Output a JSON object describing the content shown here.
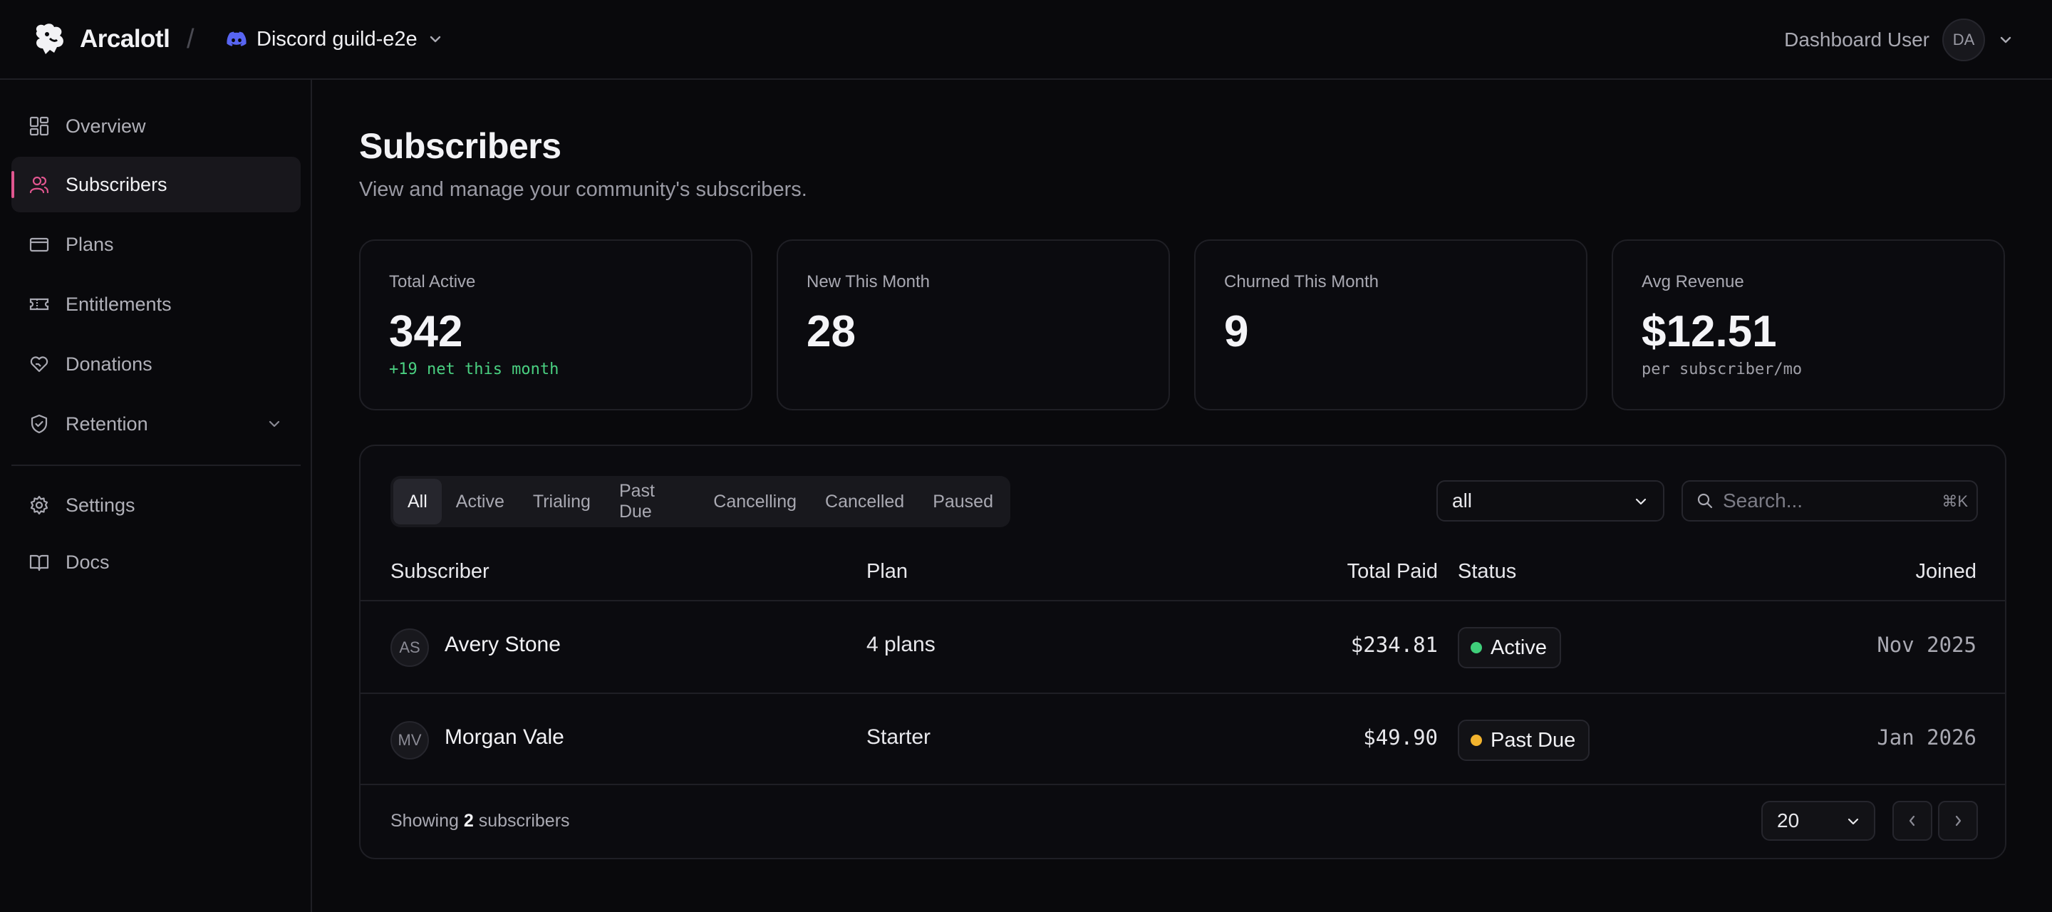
{
  "header": {
    "brand": "Arcalotl",
    "separator": "/",
    "guild_name": "Discord guild-e2e",
    "user_name": "Dashboard User",
    "user_initials": "DA"
  },
  "sidebar": {
    "items": [
      {
        "label": "Overview",
        "icon": "overview-grid-icon"
      },
      {
        "label": "Subscribers",
        "icon": "users-icon",
        "active": true
      },
      {
        "label": "Plans",
        "icon": "credit-card-icon"
      },
      {
        "label": "Entitlements",
        "icon": "ticket-icon"
      },
      {
        "label": "Donations",
        "icon": "heart-hand-icon"
      },
      {
        "label": "Retention",
        "icon": "shield-check-icon",
        "expandable": true
      },
      {
        "label": "Settings",
        "icon": "gear-icon"
      },
      {
        "label": "Docs",
        "icon": "book-icon"
      }
    ]
  },
  "page": {
    "title": "Subscribers",
    "subtitle": "View and manage your community's subscribers."
  },
  "stats": [
    {
      "label": "Total Active",
      "value": "342",
      "note": "+19 net this month"
    },
    {
      "label": "New This Month",
      "value": "28",
      "note": ""
    },
    {
      "label": "Churned This Month",
      "value": "9",
      "note": ""
    },
    {
      "label": "Avg Revenue",
      "value": "$12.51",
      "note": "per subscriber/mo"
    }
  ],
  "filters": {
    "tabs": [
      "All",
      "Active",
      "Trialing",
      "Past Due",
      "Cancelling",
      "Cancelled",
      "Paused"
    ],
    "active_tab": "All",
    "select_value": "all",
    "search_placeholder": "Search...",
    "search_shortcut": "⌘K"
  },
  "table": {
    "columns": [
      "Subscriber",
      "Plan",
      "Total Paid",
      "Status",
      "Joined"
    ],
    "rows": [
      {
        "initials": "AS",
        "name": "Avery Stone",
        "plan": "4 plans",
        "total_paid": "$234.81",
        "status": "Active",
        "status_color": "#3fcf7a",
        "joined": "Nov 2025"
      },
      {
        "initials": "MV",
        "name": "Morgan Vale",
        "plan": "Starter",
        "total_paid": "$49.90",
        "status": "Past Due",
        "status_color": "#f2b32e",
        "joined": "Jan 2026"
      }
    ]
  },
  "footer": {
    "showing_prefix": "Showing",
    "count": "2",
    "showing_suffix": "subscribers",
    "page_size": "20"
  },
  "colors": {
    "accent": "#e0568f",
    "background": "#09090c",
    "active_status": "#3fcf7a",
    "past_due_status": "#f2b32e"
  }
}
